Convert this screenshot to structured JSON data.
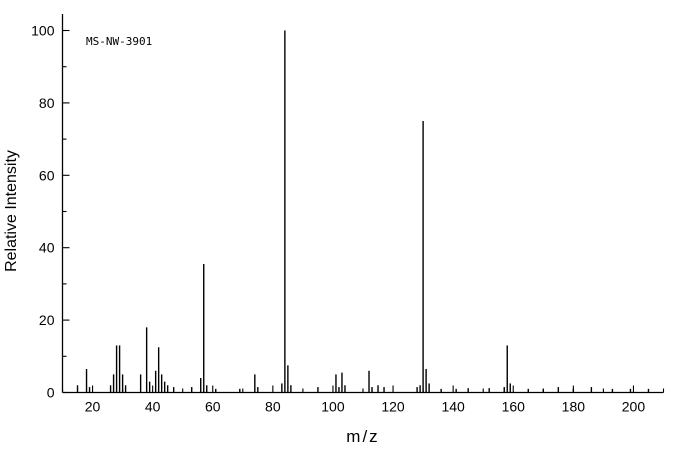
{
  "chart_data": {
    "type": "bar",
    "subtype": "mass-spectrum-stick-plot",
    "title": "MS-NW-3901",
    "xlabel": "m/z",
    "ylabel": "Relative Intensity",
    "xlim": [
      10,
      210
    ],
    "ylim": [
      0,
      100
    ],
    "x_major_tick": 20,
    "x_minor_tick": 10,
    "y_major_tick": 20,
    "y_minor_tick": 10,
    "x_tick_labels": [
      "20",
      "40",
      "60",
      "80",
      "100",
      "120",
      "140",
      "160",
      "180",
      "200"
    ],
    "y_tick_labels": [
      "0",
      "20",
      "40",
      "60",
      "80",
      "100"
    ],
    "grid": false,
    "legend": "none",
    "colors": {
      "background": "#ffffff",
      "axis": "#000000",
      "peaks": "#000000",
      "text": "#000000"
    },
    "peaks": [
      [
        15,
        2
      ],
      [
        18,
        6.5
      ],
      [
        19,
        1.5
      ],
      [
        26,
        2
      ],
      [
        27,
        5
      ],
      [
        28,
        13
      ],
      [
        29,
        13
      ],
      [
        30,
        5
      ],
      [
        31,
        2
      ],
      [
        36,
        5
      ],
      [
        38,
        18
      ],
      [
        39,
        3
      ],
      [
        41,
        6
      ],
      [
        42,
        12.5
      ],
      [
        43,
        5
      ],
      [
        44,
        3
      ],
      [
        45,
        2
      ],
      [
        47,
        1.5
      ],
      [
        53,
        1.5
      ],
      [
        56,
        4
      ],
      [
        57,
        35.5
      ],
      [
        58,
        2
      ],
      [
        61,
        1
      ],
      [
        69,
        1
      ],
      [
        74,
        5
      ],
      [
        75,
        1.5
      ],
      [
        83,
        2.5
      ],
      [
        84,
        100
      ],
      [
        85,
        7.5
      ],
      [
        86,
        2
      ],
      [
        95,
        1.5
      ],
      [
        101,
        5
      ],
      [
        102,
        1.5
      ],
      [
        103,
        5.5
      ],
      [
        104,
        2
      ],
      [
        112,
        6
      ],
      [
        113,
        1.5
      ],
      [
        115,
        2
      ],
      [
        117,
        1.5
      ],
      [
        128,
        1.5
      ],
      [
        129,
        2
      ],
      [
        130,
        75
      ],
      [
        131,
        6.5
      ],
      [
        132,
        2.5
      ],
      [
        136,
        1
      ],
      [
        141,
        1
      ],
      [
        145,
        1.2
      ],
      [
        152,
        1.2
      ],
      [
        157,
        1.5
      ],
      [
        158,
        13
      ],
      [
        159,
        2.5
      ],
      [
        165,
        1
      ],
      [
        170,
        1
      ],
      [
        175,
        1.5
      ],
      [
        180,
        1
      ],
      [
        186,
        1.5
      ],
      [
        193,
        1
      ],
      [
        199,
        1
      ],
      [
        205,
        1
      ]
    ]
  }
}
